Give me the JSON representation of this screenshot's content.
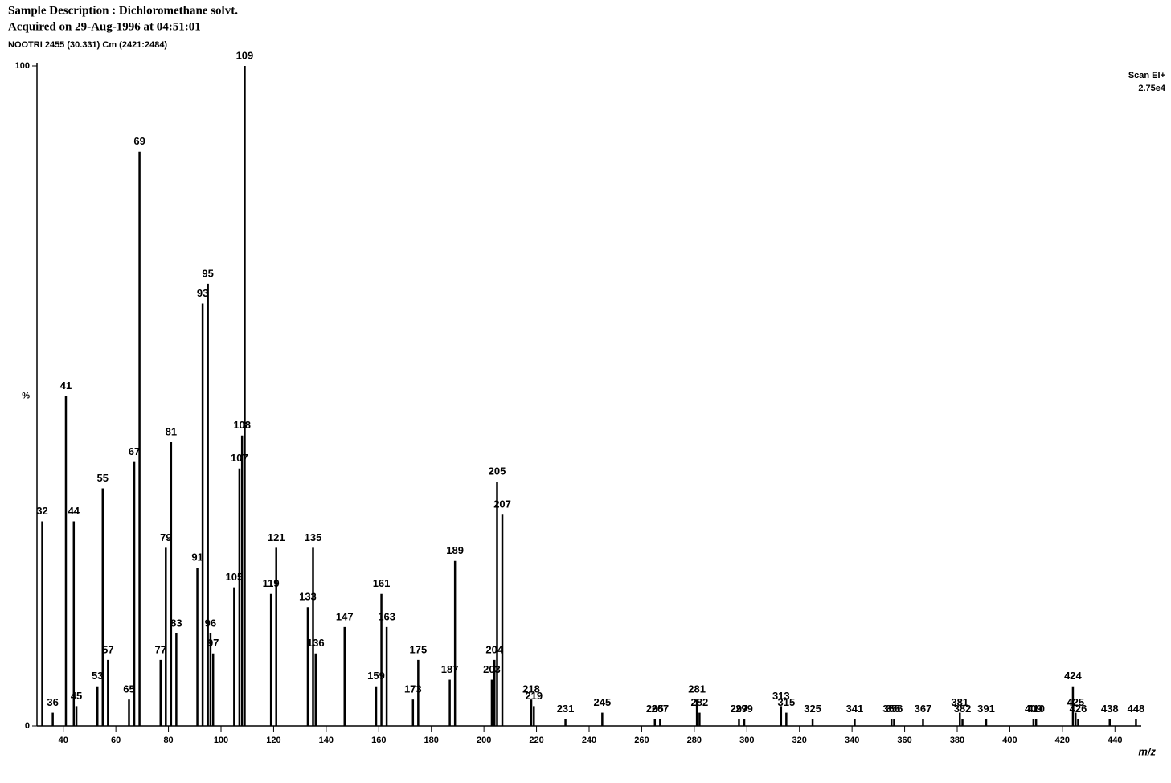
{
  "chart_data": {
    "type": "bar",
    "title": "Sample Description : Dichloromethane solvt.",
    "subtitle": "Acquired on 29-Aug-1996 at 04:51:01",
    "sample_id": "NOOTRI 2455 (30.331) Cm (2421:2484)",
    "scan_mode": "Scan EI+",
    "intensity_scale": "2.75e4",
    "x_label": "m/z",
    "x": [
      32,
      36,
      41,
      44,
      45,
      53,
      55,
      57,
      65,
      67,
      69,
      77,
      79,
      81,
      83,
      91,
      93,
      95,
      96,
      97,
      105,
      107,
      108,
      109,
      119,
      121,
      133,
      135,
      136,
      147,
      159,
      161,
      163,
      173,
      175,
      187,
      189,
      203,
      204,
      205,
      207,
      218,
      219,
      231,
      245,
      265,
      267,
      281,
      282,
      297,
      299,
      313,
      315,
      325,
      341,
      355,
      356,
      367,
      381,
      382,
      391,
      409,
      410,
      424,
      425,
      426,
      438,
      448
    ],
    "values": [
      31,
      2,
      50,
      31,
      3,
      6,
      36,
      10,
      4,
      40,
      87,
      10,
      27,
      43,
      14,
      24,
      64,
      67,
      14,
      11,
      21,
      39,
      44,
      100,
      20,
      27,
      18,
      27,
      11,
      15,
      6,
      20,
      15,
      4,
      10,
      7,
      25,
      7,
      10,
      37,
      32,
      4,
      3,
      1,
      2,
      1,
      1,
      4,
      2,
      1,
      1,
      3,
      2,
      1,
      1,
      1,
      1,
      1,
      2,
      1,
      1,
      1,
      1,
      6,
      2,
      1,
      1,
      1
    ],
    "color": "#000000",
    "xlim": [
      30,
      450
    ],
    "ylim": [
      0,
      100
    ],
    "xticks": [
      40,
      60,
      80,
      100,
      120,
      140,
      160,
      180,
      200,
      220,
      240,
      260,
      280,
      300,
      320,
      340,
      360,
      380,
      400,
      420,
      440
    ],
    "yticks": [
      0,
      {
        "value": 50,
        "label": "%"
      },
      100
    ],
    "grid": false
  }
}
